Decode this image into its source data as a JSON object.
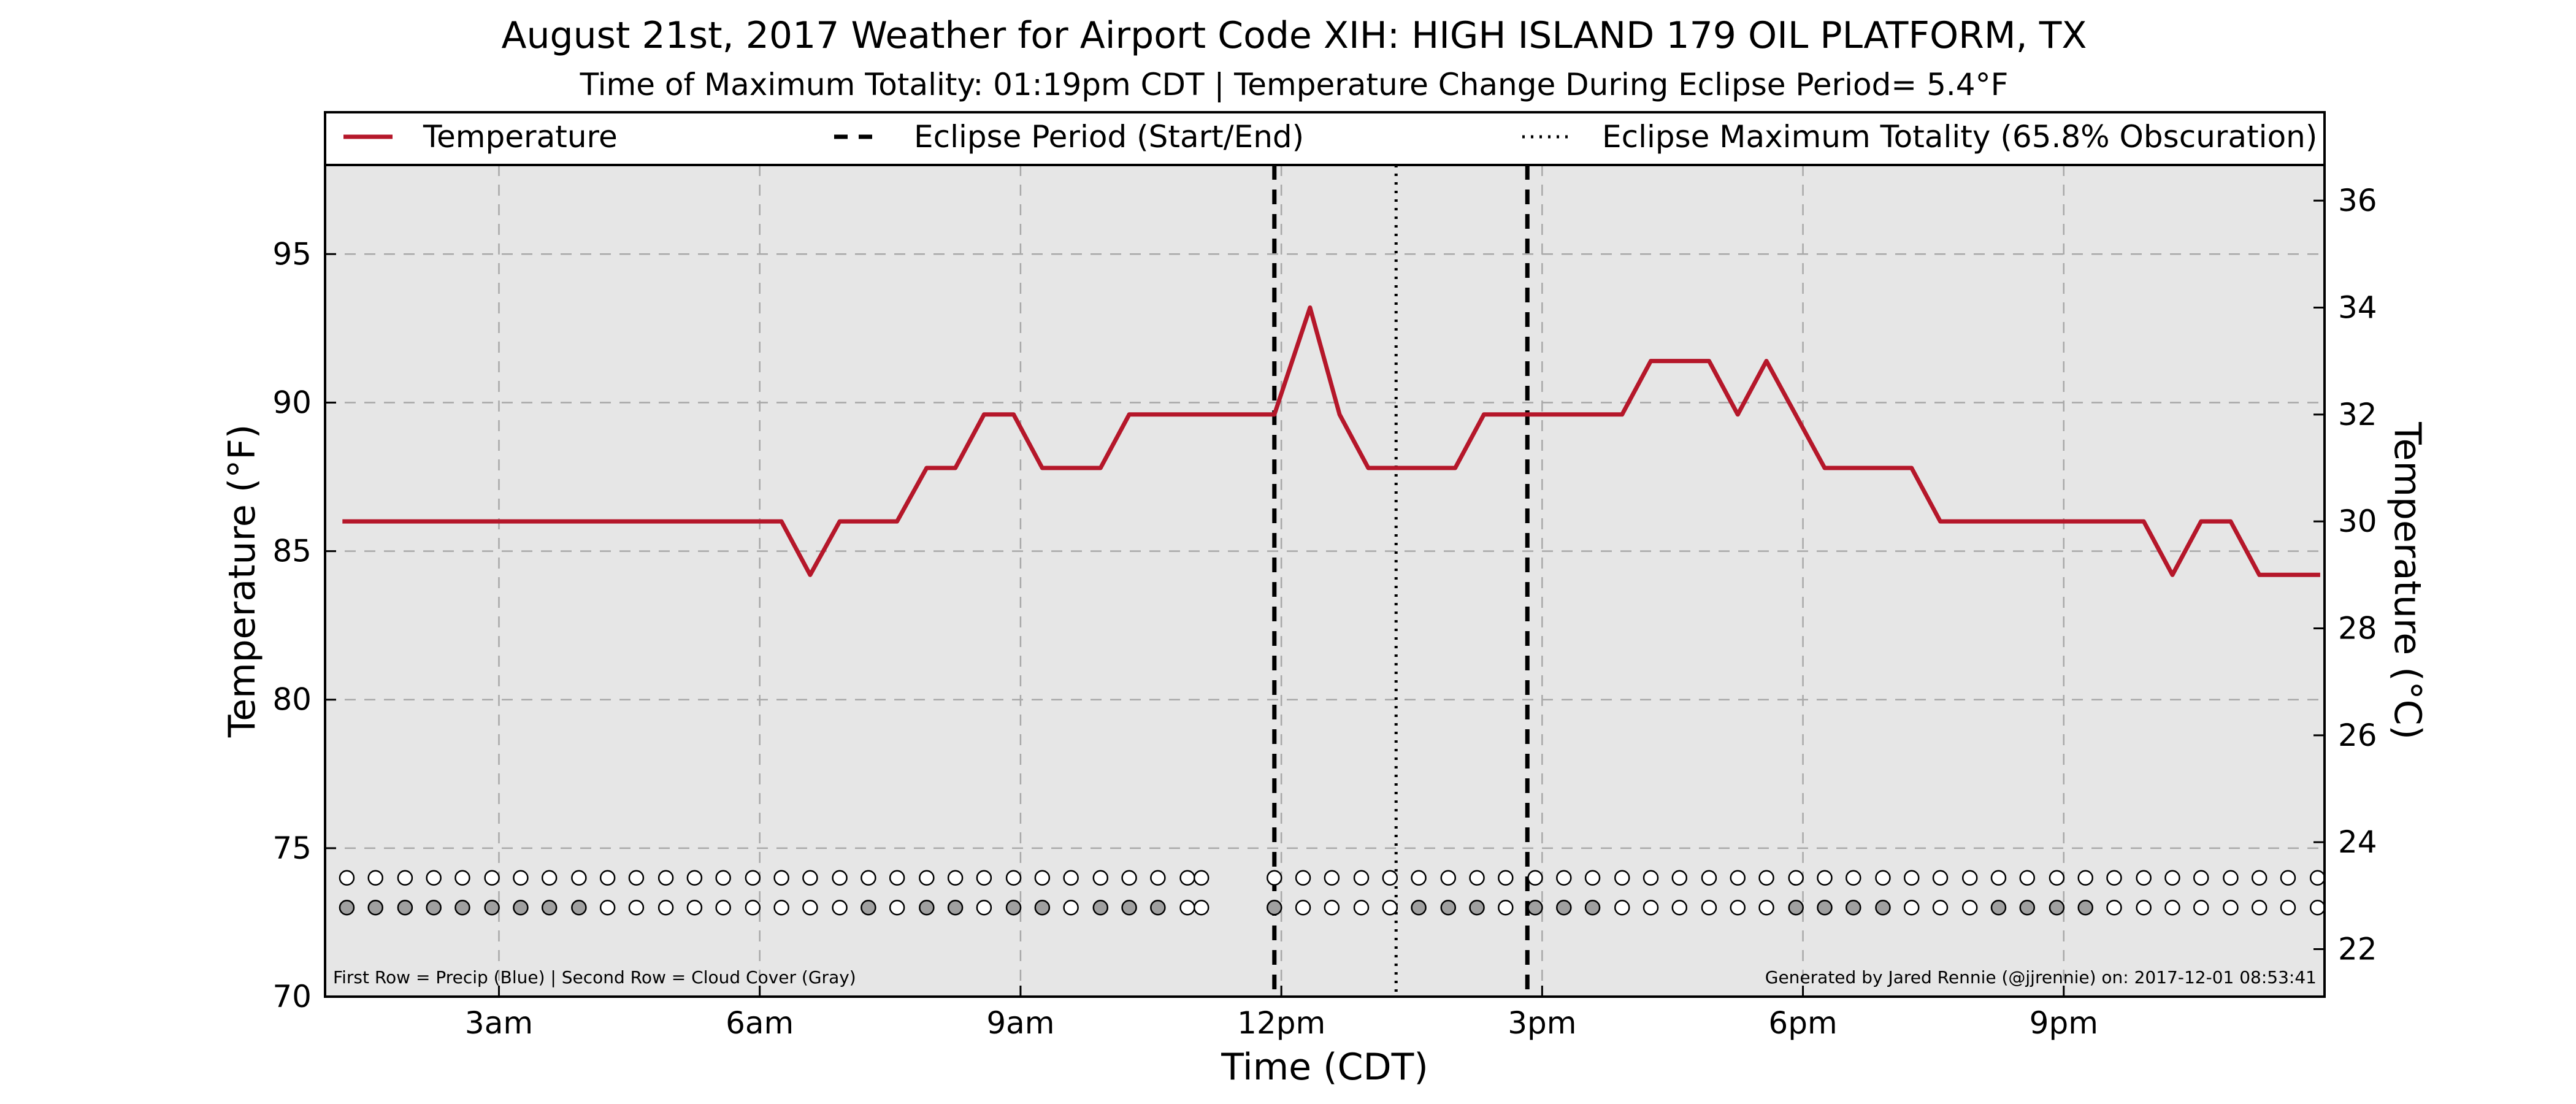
{
  "title": "August 21st, 2017 Weather for Airport Code XIH: HIGH ISLAND 179 OIL PLATFORM, TX",
  "subtitle": "Time of Maximum Totality: 01:19pm CDT | Temperature Change During Eclipse Period= 5.4°F",
  "footnote_left": "First Row = Precip (Blue) | Second Row = Cloud Cover (Gray)",
  "footnote_right": "Generated by Jared Rennie (@jjrennie) on: 2017-12-01 08:53:41",
  "colors": {
    "temperature": "#b5172a",
    "plot_bg": "#e6e6e6",
    "grid": "#a8a8a8",
    "cloud_fill": "#a0a0a0",
    "clear_fill": "#ffffff"
  },
  "chart_data": {
    "type": "line",
    "title": "August 21st, 2017 Weather for Airport Code XIH: HIGH ISLAND 179 OIL PLATFORM, TX",
    "xlabel": "Time (CDT)",
    "ylabel": "Temperature (°F)",
    "ylabel_right": "Temperature (°C)",
    "xlim": [
      1.0,
      24.0
    ],
    "ylim": [
      70,
      98
    ],
    "ylim_right": [
      21.111,
      36.667
    ],
    "grid": true,
    "legend_placement": "top (above plot, full width)",
    "x_ticks": [
      {
        "value": 3,
        "label": "3am"
      },
      {
        "value": 6,
        "label": "6am"
      },
      {
        "value": 9,
        "label": "9am"
      },
      {
        "value": 12,
        "label": "12pm"
      },
      {
        "value": 15,
        "label": "3pm"
      },
      {
        "value": 18,
        "label": "6pm"
      },
      {
        "value": 21,
        "label": "9pm"
      }
    ],
    "y_ticks": [
      70,
      75,
      80,
      85,
      90,
      95
    ],
    "y_ticks_right": [
      22,
      24,
      26,
      28,
      30,
      32,
      34,
      36
    ],
    "legend": [
      {
        "label": "Temperature",
        "style": "solid"
      },
      {
        "label": "Eclipse Period (Start/End)",
        "style": "dashed"
      },
      {
        "label": "Eclipse Maximum Totality (65.8% Obscuration)",
        "style": "dotted"
      }
    ],
    "series": [
      {
        "name": "Temperature",
        "x": [
          1.2,
          6.25,
          6.58,
          6.92,
          7.58,
          7.92,
          8.25,
          8.58,
          8.92,
          9.25,
          9.92,
          10.25,
          11.92,
          12.33,
          12.67,
          13.0,
          14.0,
          14.33,
          15.0,
          15.92,
          16.25,
          16.92,
          17.25,
          17.58,
          18.25,
          19.25,
          19.58,
          21.92,
          22.25,
          22.58,
          22.92,
          23.25,
          23.95
        ],
        "y": [
          86.0,
          86.0,
          84.2,
          86.0,
          86.0,
          87.8,
          87.8,
          89.6,
          89.6,
          87.8,
          87.8,
          89.6,
          89.6,
          93.2,
          89.6,
          87.8,
          87.8,
          89.6,
          89.6,
          89.6,
          91.4,
          91.4,
          89.6,
          91.4,
          87.8,
          87.8,
          86.0,
          86.0,
          84.2,
          86.0,
          86.0,
          84.2,
          84.2
        ]
      }
    ],
    "eclipse_start": 11.92,
    "eclipse_end": 14.83,
    "eclipse_max": 13.32,
    "marker_rows_y": {
      "precip": 74,
      "cloud": 73
    },
    "obs_times": [
      1.25,
      1.58,
      1.92,
      2.25,
      2.58,
      2.92,
      3.25,
      3.58,
      3.92,
      4.25,
      4.58,
      4.92,
      5.25,
      5.58,
      5.92,
      6.25,
      6.58,
      6.92,
      7.25,
      7.58,
      7.92,
      8.25,
      8.58,
      8.92,
      9.25,
      9.58,
      9.92,
      10.25,
      10.58,
      10.92,
      11.08,
      11.92,
      12.25,
      12.58,
      12.92,
      13.25,
      13.58,
      13.92,
      14.25,
      14.58,
      14.92,
      15.25,
      15.58,
      15.92,
      16.25,
      16.58,
      16.92,
      17.25,
      17.58,
      17.92,
      18.25,
      18.58,
      18.92,
      19.25,
      19.58,
      19.92,
      20.25,
      20.58,
      20.92,
      21.25,
      21.58,
      21.92,
      22.25,
      22.58,
      22.92,
      23.25,
      23.58,
      23.92
    ],
    "precip": [
      0,
      0,
      0,
      0,
      0,
      0,
      0,
      0,
      0,
      0,
      0,
      0,
      0,
      0,
      0,
      0,
      0,
      0,
      0,
      0,
      0,
      0,
      0,
      0,
      0,
      0,
      0,
      0,
      0,
      0,
      0,
      0,
      0,
      0,
      0,
      0,
      0,
      0,
      0,
      0,
      0,
      0,
      0,
      0,
      0,
      0,
      0,
      0,
      0,
      0,
      0,
      0,
      0,
      0,
      0,
      0,
      0,
      0,
      0,
      0,
      0,
      0,
      0,
      0,
      0,
      0,
      0,
      0
    ],
    "cloud": [
      1,
      1,
      1,
      1,
      1,
      1,
      1,
      1,
      1,
      0,
      0,
      0,
      0,
      0,
      0,
      0,
      0,
      0,
      1,
      0,
      1,
      1,
      0,
      1,
      1,
      0,
      1,
      1,
      1,
      0,
      0,
      1,
      0,
      0,
      0,
      0,
      1,
      1,
      1,
      0,
      1,
      1,
      1,
      0,
      0,
      0,
      0,
      0,
      0,
      1,
      1,
      1,
      1,
      0,
      0,
      0,
      1,
      1,
      1,
      1,
      0,
      0,
      0,
      0,
      0,
      0,
      0,
      0
    ]
  }
}
